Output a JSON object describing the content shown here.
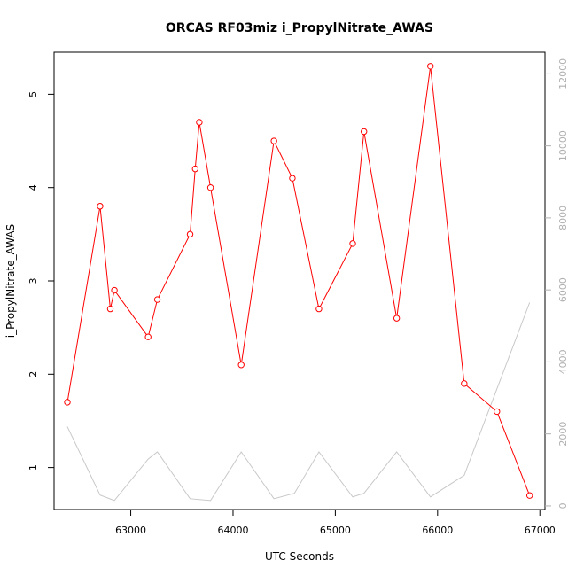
{
  "chart_data": {
    "type": "line",
    "title": "ORCAS RF03miz i_PropylNitrate_AWAS",
    "xlabel": "UTC Seconds",
    "ylabel": "i_PropylNitrate_AWAS",
    "xlim": [
      62250,
      67050
    ],
    "ylim": [
      0.55,
      5.45
    ],
    "y2lim": [
      -100,
      12600
    ],
    "x_ticks": [
      63000,
      64000,
      65000,
      66000,
      67000
    ],
    "y_ticks": [
      1,
      2,
      3,
      4,
      5
    ],
    "y2_ticks": [
      0,
      2000,
      4000,
      6000,
      8000,
      10000,
      12000
    ],
    "grid": false,
    "series": [
      {
        "color": "#ff0000",
        "marker": "open-circle",
        "axis": "left",
        "x": [
          62380,
          62700,
          62800,
          62840,
          63170,
          63260,
          63580,
          63630,
          63670,
          63780,
          64080,
          64400,
          64580,
          64840,
          65170,
          65280,
          65600,
          65930,
          66260,
          66580,
          66900
        ],
        "y": [
          1.7,
          3.8,
          2.7,
          2.9,
          2.4,
          2.8,
          3.5,
          4.2,
          4.7,
          4.0,
          2.1,
          4.5,
          4.1,
          2.7,
          3.4,
          4.6,
          2.6,
          5.3,
          1.9,
          1.6,
          0.7
        ]
      },
      {
        "color": "#c8c8c8",
        "axis": "right",
        "x": [
          62380,
          62700,
          62840,
          63170,
          63260,
          63580,
          63780,
          64080,
          64400,
          64600,
          64840,
          65170,
          65280,
          65600,
          65930,
          66260,
          66900
        ],
        "y": [
          2200,
          300,
          150,
          1300,
          1500,
          200,
          150,
          1500,
          200,
          350,
          1500,
          250,
          350,
          1500,
          250,
          850,
          5650
        ]
      }
    ]
  }
}
